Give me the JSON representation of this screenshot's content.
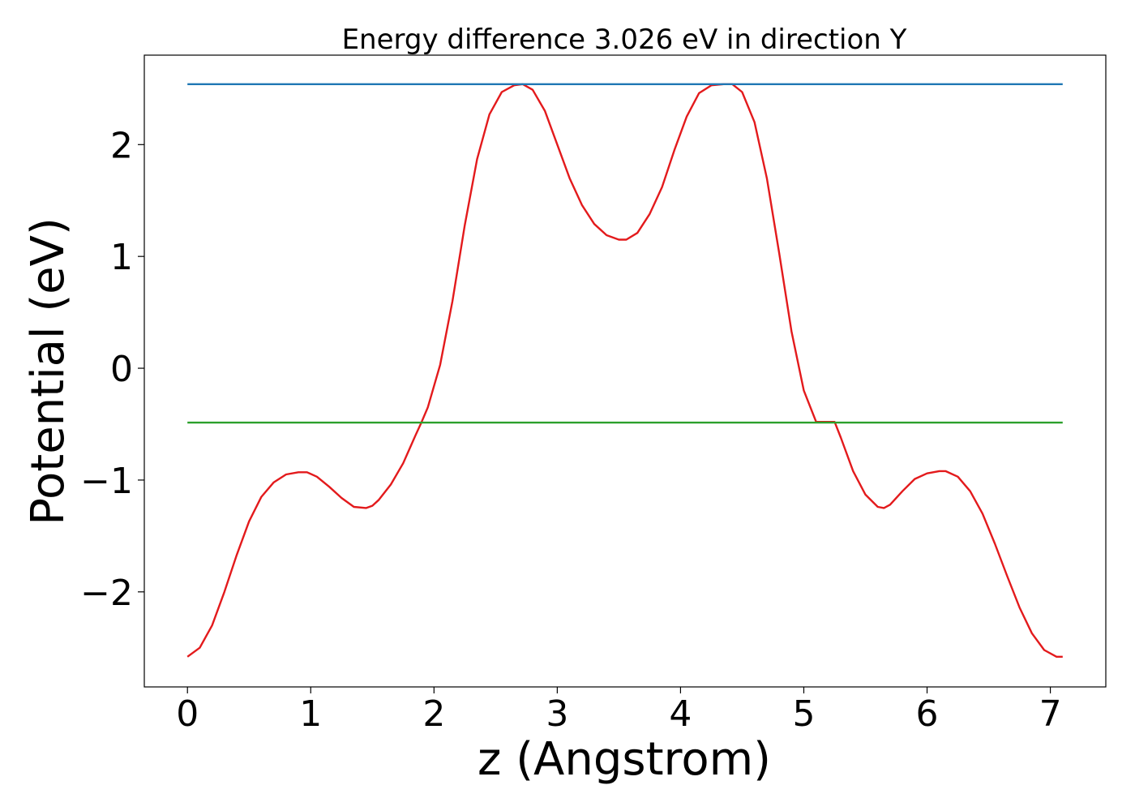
{
  "chart_data": {
    "type": "line",
    "title": "Energy difference 3.026 eV in direction Y",
    "xlabel": "z (Angstrom)",
    "ylabel": "Potential (eV)",
    "xlim": [
      -0.35,
      7.45
    ],
    "ylim": [
      -2.85,
      2.8
    ],
    "xticks": [
      0,
      1,
      2,
      3,
      4,
      5,
      6,
      7
    ],
    "xtick_labels": [
      "0",
      "1",
      "2",
      "3",
      "4",
      "5",
      "6",
      "7"
    ],
    "yticks": [
      -2,
      -1,
      0,
      1,
      2
    ],
    "ytick_labels": [
      "−2",
      "−1",
      "0",
      "1",
      "2"
    ],
    "grid": false,
    "series": [
      {
        "color": "#e31a1c",
        "x": [
          0.0,
          0.1,
          0.2,
          0.3,
          0.4,
          0.5,
          0.6,
          0.7,
          0.8,
          0.9,
          0.97,
          1.05,
          1.15,
          1.25,
          1.35,
          1.45,
          1.5,
          1.55,
          1.65,
          1.75,
          1.85,
          1.9,
          1.95,
          2.05,
          2.15,
          2.25,
          2.35,
          2.45,
          2.55,
          2.65,
          2.72,
          2.8,
          2.9,
          3.0,
          3.1,
          3.2,
          3.3,
          3.4,
          3.5,
          3.56,
          3.65,
          3.75,
          3.85,
          3.95,
          4.05,
          4.15,
          4.25,
          4.35,
          4.42,
          4.5,
          4.6,
          4.7,
          4.8,
          4.9,
          5.0,
          5.1,
          5.2,
          5.25,
          5.3,
          5.4,
          5.5,
          5.6,
          5.65,
          5.7,
          5.8,
          5.9,
          6.0,
          6.1,
          6.15,
          6.25,
          6.35,
          6.45,
          6.55,
          6.65,
          6.75,
          6.85,
          6.95,
          7.05,
          7.1
        ],
        "values": [
          -2.58,
          -2.5,
          -2.3,
          -2.0,
          -1.67,
          -1.37,
          -1.15,
          -1.02,
          -0.95,
          -0.93,
          -0.93,
          -0.97,
          -1.06,
          -1.16,
          -1.24,
          -1.25,
          -1.23,
          -1.18,
          -1.04,
          -0.85,
          -0.6,
          -0.48,
          -0.35,
          0.03,
          0.6,
          1.28,
          1.87,
          2.27,
          2.47,
          2.53,
          2.54,
          2.49,
          2.3,
          2.0,
          1.7,
          1.46,
          1.29,
          1.19,
          1.15,
          1.15,
          1.21,
          1.38,
          1.62,
          1.95,
          2.25,
          2.46,
          2.53,
          2.54,
          2.54,
          2.47,
          2.2,
          1.7,
          1.03,
          0.33,
          -0.2,
          -0.48,
          -0.48,
          -0.48,
          -0.62,
          -0.92,
          -1.13,
          -1.24,
          -1.25,
          -1.22,
          -1.1,
          -0.99,
          -0.94,
          -0.92,
          -0.92,
          -0.97,
          -1.1,
          -1.3,
          -1.57,
          -1.86,
          -2.14,
          -2.37,
          -2.52,
          -2.58,
          -2.58
        ]
      },
      {
        "color": "#1f77b4",
        "x": [
          0.0,
          7.1
        ],
        "values": [
          2.54,
          2.54
        ]
      },
      {
        "color": "#2ca02c",
        "x": [
          0.0,
          7.1
        ],
        "values": [
          -0.486,
          -0.486
        ]
      }
    ]
  }
}
